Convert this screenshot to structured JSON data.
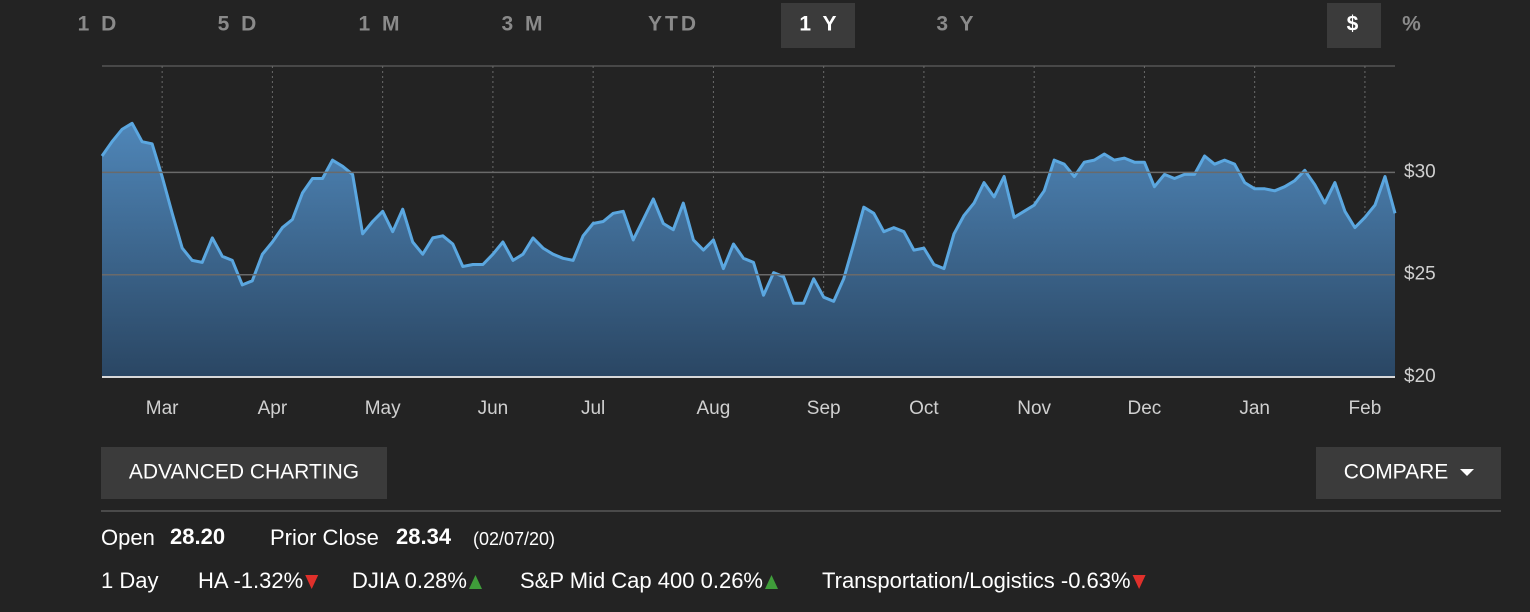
{
  "range_tabs": {
    "items": [
      "1 D",
      "5 D",
      "1 M",
      "3 M",
      "YTD",
      "1 Y",
      "3 Y"
    ],
    "selected": 5
  },
  "unit_tabs": {
    "items": [
      "$",
      "%"
    ],
    "selected": 0
  },
  "chart_data": {
    "type": "line",
    "area": true,
    "color": "#5ba7e0",
    "grid": true,
    "ylim": [
      20,
      35.2
    ],
    "yticks": [
      {
        "value": 20,
        "label": "$20"
      },
      {
        "value": 25,
        "label": "$25"
      },
      {
        "value": 30,
        "label": "$30"
      }
    ],
    "categories": [
      null,
      null,
      null,
      null,
      null,
      null,
      "Mar",
      null,
      null,
      null,
      null,
      null,
      null,
      null,
      null,
      null,
      null,
      "Apr",
      null,
      null,
      null,
      null,
      null,
      null,
      null,
      null,
      null,
      null,
      "May",
      null,
      null,
      null,
      null,
      null,
      null,
      null,
      null,
      null,
      null,
      "Jun",
      null,
      null,
      null,
      null,
      null,
      null,
      null,
      null,
      null,
      "Jul",
      null,
      null,
      null,
      null,
      null,
      null,
      null,
      null,
      null,
      null,
      null,
      "Aug",
      null,
      null,
      null,
      null,
      null,
      null,
      null,
      null,
      null,
      null,
      "Sep",
      null,
      null,
      null,
      null,
      null,
      null,
      null,
      null,
      null,
      "Oct",
      null,
      null,
      null,
      null,
      null,
      null,
      null,
      null,
      null,
      null,
      "Nov",
      null,
      null,
      null,
      null,
      null,
      null,
      null,
      null,
      null,
      null,
      "Dec",
      null,
      null,
      null,
      null,
      null,
      null,
      null,
      null,
      null,
      null,
      "Jan",
      null,
      null,
      null,
      null,
      null,
      null,
      null,
      null,
      null,
      null,
      "Feb",
      null,
      null,
      null
    ],
    "values": [
      30.8,
      31.5,
      32.1,
      32.4,
      31.5,
      31.4,
      29.8,
      28.0,
      26.3,
      25.7,
      25.6,
      26.8,
      25.9,
      25.7,
      24.5,
      24.7,
      26.0,
      26.6,
      27.3,
      27.7,
      29.0,
      29.7,
      29.7,
      30.6,
      30.3,
      29.9,
      27.0,
      27.6,
      28.1,
      27.1,
      28.2,
      26.6,
      26.0,
      26.8,
      26.9,
      26.5,
      25.4,
      25.5,
      25.5,
      26.0,
      26.6,
      25.7,
      26.0,
      26.8,
      26.3,
      26.0,
      25.8,
      25.7,
      26.9,
      27.5,
      27.6,
      28.0,
      28.1,
      26.7,
      27.7,
      28.7,
      27.5,
      27.2,
      28.5,
      26.7,
      26.2,
      26.7,
      25.3,
      26.5,
      25.8,
      25.6,
      24.0,
      25.1,
      24.9,
      23.6,
      23.6,
      24.8,
      23.9,
      23.7,
      24.8,
      26.5,
      28.3,
      28.0,
      27.1,
      27.3,
      27.1,
      26.2,
      26.3,
      25.5,
      25.3,
      27.0,
      27.9,
      28.5,
      29.5,
      28.8,
      29.8,
      27.8,
      28.1,
      28.4,
      29.1,
      30.6,
      30.4,
      29.8,
      30.5,
      30.6,
      30.9,
      30.6,
      30.7,
      30.5,
      30.5,
      29.3,
      29.9,
      29.7,
      29.9,
      29.9,
      30.8,
      30.4,
      30.6,
      30.4,
      29.5,
      29.2,
      29.2,
      29.1,
      29.3,
      29.6,
      30.1,
      29.4,
      28.5,
      29.5,
      28.1,
      27.3,
      27.8,
      28.4,
      29.8,
      28.0
    ]
  },
  "buttons": {
    "advanced": "ADVANCED CHARTING",
    "compare": "COMPARE"
  },
  "quote": {
    "open_label": "Open",
    "open": "28.20",
    "prior_close_label": "Prior Close",
    "prior_close": "28.34",
    "prior_close_date": "(02/07/20)"
  },
  "day_change": {
    "label": "1 Day",
    "items": [
      {
        "name": "HA",
        "change": "-1.32%",
        "direction": "down"
      },
      {
        "name": "DJIA",
        "change": "0.28%",
        "direction": "up"
      },
      {
        "name": "S&P Mid Cap 400",
        "change": "0.26%",
        "direction": "up"
      },
      {
        "name": "Transportation/Logistics",
        "change": "-0.63%",
        "direction": "down"
      }
    ]
  }
}
